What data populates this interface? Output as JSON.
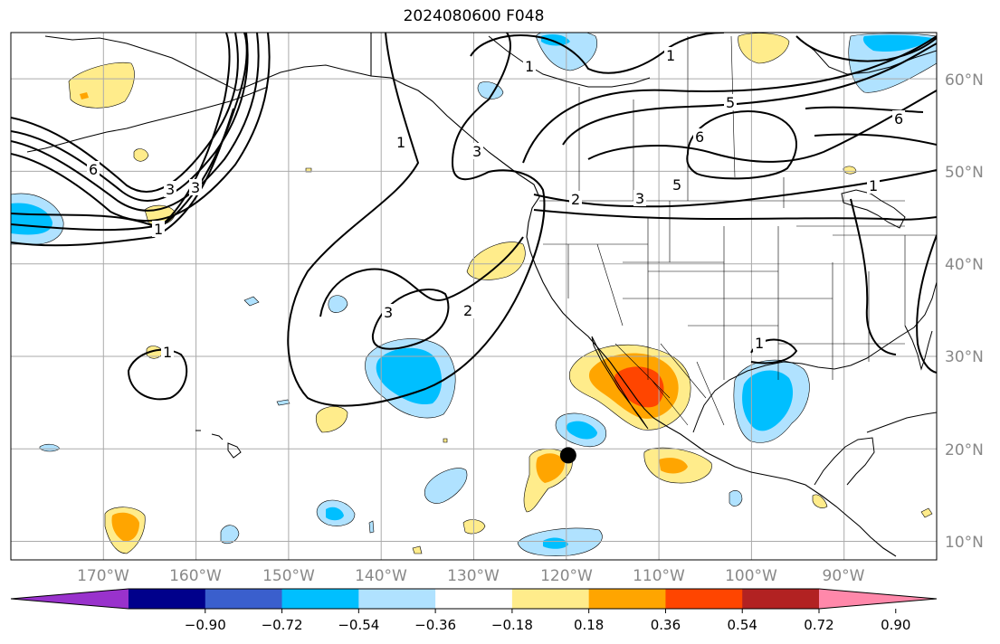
{
  "title": "2024080600 F048",
  "map": {
    "projection": "PlateCarree",
    "lon_range": [
      -180,
      -80
    ],
    "lat_range": [
      8,
      65
    ],
    "gridlines": true,
    "longitude_labels": [
      "170°W",
      "160°W",
      "150°W",
      "140°W",
      "130°W",
      "120°W",
      "110°W",
      "100°W",
      "90°W"
    ],
    "latitude_labels": [
      "60°N",
      "50°N",
      "40°N",
      "30°N",
      "20°N",
      "10°N"
    ],
    "marker": {
      "label": "point-marker",
      "lon": -119.8,
      "lat": 19.3,
      "color": "#000000"
    },
    "contour_labels": [
      "1",
      "2",
      "3",
      "5",
      "6"
    ]
  },
  "colorbar": {
    "orientation": "horizontal",
    "extend": "both",
    "tick_labels": [
      "−0.90",
      "−0.72",
      "−0.54",
      "−0.36",
      "−0.18",
      "0.18",
      "0.36",
      "0.54",
      "0.72",
      "0.90"
    ],
    "colors": [
      "#9932cc",
      "#00008b",
      "#3a5fcd",
      "#00bfff",
      "#b0e2ff",
      "#ffffff",
      "#ffec8b",
      "#ffa500",
      "#ff4500",
      "#b22222",
      "#ff88aa"
    ]
  },
  "colors": {
    "land_boundary": "#000000",
    "grid": "#aaaaaa",
    "contour": "#000000"
  }
}
